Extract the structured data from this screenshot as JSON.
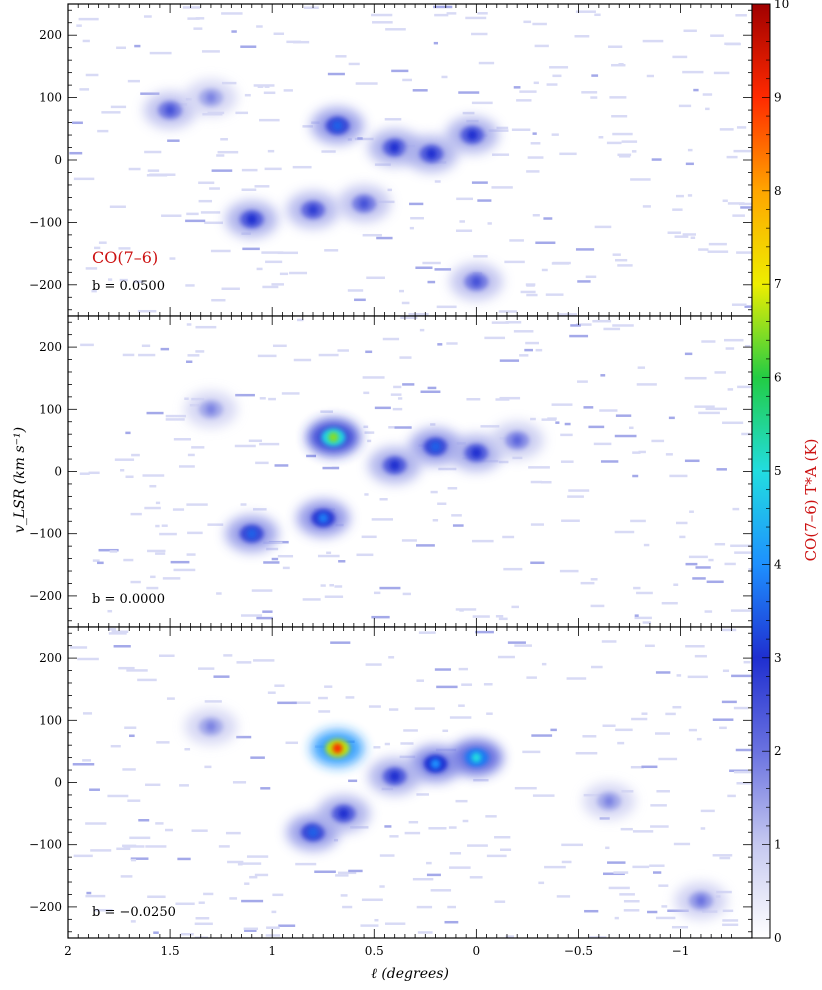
{
  "chart_data": {
    "type": "heatmap",
    "xlabel": "ℓ (degrees)",
    "ylabel": "v_LSR (km s⁻¹)",
    "x_ticks": [
      2,
      1.5,
      1,
      0.5,
      0,
      -0.5,
      -1
    ],
    "x_tick_labels": [
      "2",
      "1.5",
      "1",
      "0.5",
      "0",
      "−0.5",
      "−1"
    ],
    "xlim": [
      2,
      -1.35
    ],
    "y_ticks": [
      200,
      100,
      0,
      -100,
      -200
    ],
    "y_tick_labels": [
      "200",
      "100",
      "0",
      "−100",
      "−200"
    ],
    "ylim": [
      -250,
      250
    ],
    "colorbar": {
      "label": "CO(7–6) T*A (K)",
      "range": [
        0,
        10
      ],
      "ticks": [
        0,
        1,
        2,
        3,
        4,
        5,
        6,
        7,
        8,
        9,
        10
      ],
      "tick_labels": [
        "0",
        "1",
        "2",
        "3",
        "4",
        "5",
        "6",
        "7",
        "8",
        "9",
        "10"
      ],
      "colors": [
        "#ffffff",
        "#c6c9f0",
        "#6a72e0",
        "#1f2fd0",
        "#1e90ff",
        "#22dde0",
        "#22cc44",
        "#eeee00",
        "#ffa500",
        "#ff2a00",
        "#a00000"
      ]
    },
    "panels": [
      {
        "line_label": "CO(7–6)",
        "b_label": "b = 0.0500",
        "blobs": [
          {
            "l": 1.5,
            "v": 80,
            "i": 2.5
          },
          {
            "l": 1.3,
            "v": 100,
            "i": 1.8
          },
          {
            "l": 0.68,
            "v": 55,
            "i": 3.5
          },
          {
            "l": 0.4,
            "v": 20,
            "i": 3.0
          },
          {
            "l": 0.22,
            "v": 10,
            "i": 3.0
          },
          {
            "l": 0.02,
            "v": 40,
            "i": 3.0
          },
          {
            "l": 1.1,
            "v": -95,
            "i": 3.0
          },
          {
            "l": 0.8,
            "v": -80,
            "i": 2.8
          },
          {
            "l": 0.55,
            "v": -70,
            "i": 2.5
          },
          {
            "l": 0.0,
            "v": -195,
            "i": 2.5
          }
        ]
      },
      {
        "line_label": "",
        "b_label": "b = 0.0000",
        "blobs": [
          {
            "l": 1.3,
            "v": 100,
            "i": 1.8
          },
          {
            "l": 0.7,
            "v": 55,
            "i": 6.5
          },
          {
            "l": 0.2,
            "v": 40,
            "i": 3.5
          },
          {
            "l": 0.0,
            "v": 30,
            "i": 3.0
          },
          {
            "l": 0.4,
            "v": 10,
            "i": 3.0
          },
          {
            "l": 1.1,
            "v": -100,
            "i": 3.5
          },
          {
            "l": 0.75,
            "v": -75,
            "i": 3.8
          },
          {
            "l": -0.2,
            "v": 50,
            "i": 2.2
          }
        ]
      },
      {
        "line_label": "",
        "b_label": "b = −0.0250",
        "blobs": [
          {
            "l": 0.68,
            "v": 55,
            "i": 9.0
          },
          {
            "l": 0.0,
            "v": 40,
            "i": 5.0
          },
          {
            "l": 0.2,
            "v": 30,
            "i": 4.0
          },
          {
            "l": 0.4,
            "v": 10,
            "i": 3.0
          },
          {
            "l": 1.3,
            "v": 90,
            "i": 1.8
          },
          {
            "l": 0.8,
            "v": -80,
            "i": 3.5
          },
          {
            "l": 0.65,
            "v": -50,
            "i": 3.0
          },
          {
            "l": -0.65,
            "v": -30,
            "i": 1.8
          },
          {
            "l": -1.1,
            "v": -190,
            "i": 2.0
          }
        ]
      }
    ]
  }
}
